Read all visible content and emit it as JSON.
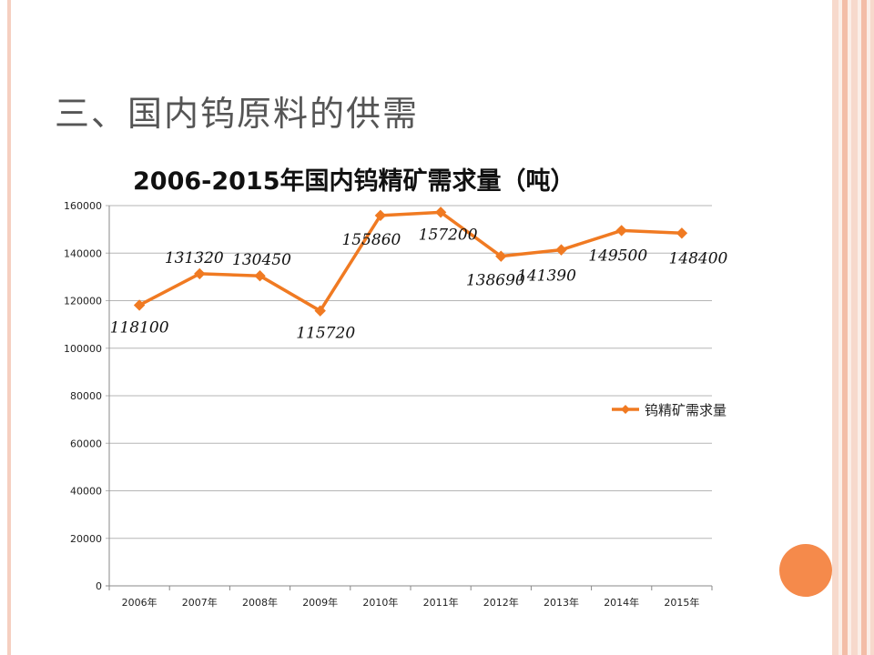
{
  "slide": {
    "title": "三、国内钨原料的供需"
  },
  "colors": {
    "series": "#f07a22",
    "accent_circle": "#f58a4b"
  },
  "chart_data": {
    "type": "line",
    "title": "2006-2015年国内钨精矿需求量（吨）",
    "categories": [
      "2006年",
      "2007年",
      "2008年",
      "2009年",
      "2010年",
      "2011年",
      "2012年",
      "2013年",
      "2014年",
      "2015年"
    ],
    "series": [
      {
        "name": "钨精矿需求量",
        "values": [
          118100,
          131320,
          130450,
          115720,
          155860,
          157200,
          138690,
          141390,
          149500,
          148400
        ]
      }
    ],
    "data_labels": [
      "118100",
      "131320",
      "130450",
      "115720",
      "155860",
      "157200",
      "138690",
      "141390",
      "149500",
      "148400"
    ],
    "yticks": [
      "0",
      "20000",
      "40000",
      "60000",
      "80000",
      "100000",
      "120000",
      "140000",
      "160000"
    ],
    "ylim": [
      0,
      160000
    ],
    "grid": true,
    "legend_position": "right",
    "marker": "diamond"
  }
}
